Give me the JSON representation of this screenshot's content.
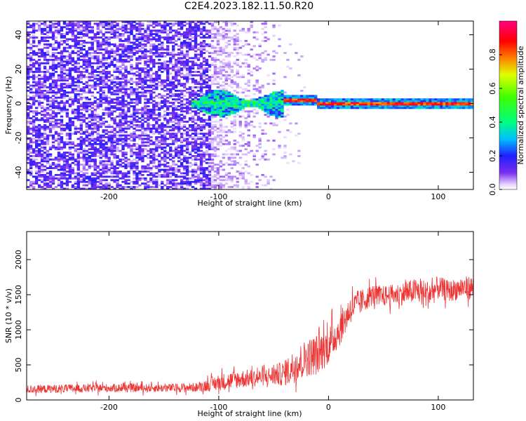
{
  "title": "C2E4.2023.182.11.50.R20",
  "chart_data": [
    {
      "type": "heatmap",
      "title": "C2E4.2023.182.11.50.R20",
      "xlabel": "Height of straight line (km)",
      "ylabel": "Frequency (Hz)",
      "xlim": [
        -275,
        132
      ],
      "ylim": [
        -50,
        48
      ],
      "x_ticks": [
        -200,
        -100,
        0,
        100
      ],
      "y_ticks": [
        40,
        20,
        0,
        -20,
        -40
      ],
      "colorbar": {
        "label": "Normalized spectral amplitude",
        "range": [
          0.0,
          1.0
        ],
        "ticks": [
          0.0,
          0.2,
          0.4,
          0.6,
          0.8
        ],
        "colormap": "rainbow (white-violet-blue-cyan-green-yellow-red-magenta)"
      },
      "description_regions": [
        {
          "x_range": [
            -275,
            -110
          ],
          "freq_range": [
            -50,
            48
          ],
          "amplitude": "low (0.05-0.2), broadband noise"
        },
        {
          "x_range": [
            -125,
            -40
          ],
          "freq_range": [
            -8,
            5
          ],
          "amplitude": "medium (0.2-0.5) band around 0 Hz"
        },
        {
          "x_range": [
            -40,
            132
          ],
          "freq_range": [
            -1,
            1
          ],
          "amplitude": "high (0.7-1.0) narrow line at 0 Hz"
        }
      ],
      "grid": false
    },
    {
      "type": "line",
      "xlabel": "Height of straight line (km)",
      "ylabel": "SNR (10 * v/v)",
      "xlim": [
        -275,
        132
      ],
      "ylim": [
        0,
        2400
      ],
      "x_ticks": [
        -200,
        -100,
        0,
        100
      ],
      "y_ticks": [
        0,
        500,
        1000,
        1500,
        2000
      ],
      "color": "#ee3333",
      "series": [
        {
          "x": [
            -275,
            -250,
            -200,
            -150,
            -120,
            -100,
            -80,
            -60,
            -40,
            -30,
            -20,
            -10,
            0,
            10,
            20,
            30,
            40,
            50,
            60,
            70,
            80,
            90,
            100,
            110,
            120,
            132
          ],
          "y": [
            150,
            160,
            170,
            170,
            180,
            250,
            300,
            320,
            380,
            500,
            600,
            650,
            780,
            1000,
            1300,
            1400,
            1500,
            1480,
            1500,
            1520,
            1560,
            1500,
            1600,
            1550,
            1600,
            1600
          ],
          "noise": [
            100,
            100,
            100,
            100,
            110,
            200,
            220,
            200,
            300,
            420,
            450,
            500,
            450,
            400,
            350,
            300,
            250,
            250,
            250,
            280,
            300,
            350,
            280,
            250,
            280,
            280
          ]
        }
      ],
      "grid": false
    }
  ]
}
